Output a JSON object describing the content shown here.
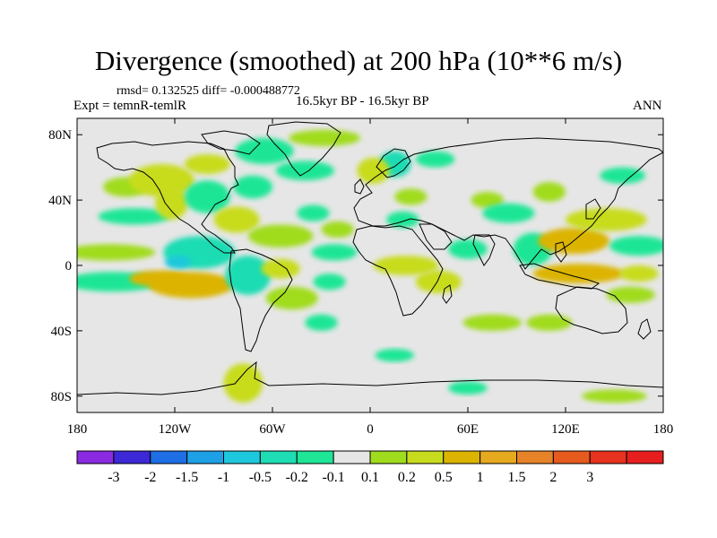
{
  "title": "Divergence (smoothed) at 200 hPa (10**6 m/s)",
  "stats": "rmsd= 0.132525 diff= -0.000488772",
  "experiment": "Expt = temnR-temlR",
  "period": "16.5kyr BP - 16.5kyr BP",
  "season": "ANN",
  "map": {
    "projection": "cylindrical equidistant",
    "lon_range": [
      -180,
      180
    ],
    "lat_range": [
      -90,
      90
    ],
    "lat_ticks": [
      {
        "value": 80,
        "label": "80N"
      },
      {
        "value": 40,
        "label": "40N"
      },
      {
        "value": 0,
        "label": "0"
      },
      {
        "value": -40,
        "label": "40S"
      },
      {
        "value": -80,
        "label": "80S"
      }
    ],
    "lon_ticks": [
      {
        "value": -180,
        "label": "180"
      },
      {
        "value": -120,
        "label": "120W"
      },
      {
        "value": -60,
        "label": "60W"
      },
      {
        "value": 0,
        "label": "0"
      },
      {
        "value": 60,
        "label": "60E"
      },
      {
        "value": 120,
        "label": "120E"
      },
      {
        "value": 180,
        "label": "180"
      }
    ],
    "background_color": "#e6e6e6",
    "coastline_color": "#000000"
  },
  "colorbar": {
    "colors": [
      "#8a2be2",
      "#3c28d6",
      "#1e6ee6",
      "#1ea0e6",
      "#1ec8dc",
      "#1edcb4",
      "#1ee696",
      "#e6e6e6",
      "#a0dc1e",
      "#c8dc1e",
      "#dcb400",
      "#e6aa1e",
      "#e68228",
      "#e65a1e",
      "#e6321e",
      "#e61e1e"
    ],
    "labels": [
      "-3",
      "-2",
      "-1.5",
      "-1",
      "-0.5",
      "-0.2",
      "-0.1",
      "0.1",
      "0.2",
      "0.5",
      "1",
      "1.5",
      "2",
      "3"
    ]
  },
  "chart_data": {
    "type": "heatmap",
    "title": "Divergence (smoothed) at 200 hPa (10**6 m/s)",
    "levels": [
      -3,
      -2,
      -1.5,
      -1,
      -0.5,
      -0.2,
      -0.1,
      0.1,
      0.2,
      0.5,
      1,
      1.5,
      2,
      3
    ],
    "anomalies": [
      {
        "lon": -160,
        "lat": 8,
        "rlon": 28,
        "rlat": 5,
        "value": 0.15
      },
      {
        "lon": -158,
        "lat": -10,
        "rlon": 30,
        "rlat": 6,
        "value": -0.15
      },
      {
        "lon": -150,
        "lat": 48,
        "rlon": 14,
        "rlat": 6,
        "value": 0.15
      },
      {
        "lon": -145,
        "lat": 30,
        "rlon": 22,
        "rlat": 5,
        "value": -0.15
      },
      {
        "lon": -128,
        "lat": 52,
        "rlon": 20,
        "rlat": 10,
        "value": 0.3
      },
      {
        "lon": -122,
        "lat": 38,
        "rlon": 10,
        "rlat": 10,
        "value": 0.3
      },
      {
        "lon": -100,
        "lat": 42,
        "rlon": 14,
        "rlat": 10,
        "value": -0.15
      },
      {
        "lon": -105,
        "lat": 8,
        "rlon": 22,
        "rlat": 10,
        "value": -0.3
      },
      {
        "lon": -110,
        "lat": -12,
        "rlon": 26,
        "rlat": 8,
        "value": 0.6
      },
      {
        "lon": -130,
        "lat": -8,
        "rlon": 18,
        "rlat": 5,
        "value": 0.6
      },
      {
        "lon": -118,
        "lat": 2,
        "rlon": 8,
        "rlat": 4,
        "value": -0.6
      },
      {
        "lon": -82,
        "lat": 28,
        "rlon": 14,
        "rlat": 8,
        "value": 0.3
      },
      {
        "lon": -72,
        "lat": 48,
        "rlon": 12,
        "rlat": 7,
        "value": -0.15
      },
      {
        "lon": -65,
        "lat": 70,
        "rlon": 18,
        "rlat": 8,
        "value": -0.15
      },
      {
        "lon": -100,
        "lat": 62,
        "rlon": 14,
        "rlat": 6,
        "value": 0.3
      },
      {
        "lon": -55,
        "lat": 18,
        "rlon": 20,
        "rlat": 7,
        "value": 0.15
      },
      {
        "lon": -75,
        "lat": -6,
        "rlon": 14,
        "rlat": 12,
        "value": -0.3
      },
      {
        "lon": -55,
        "lat": -2,
        "rlon": 12,
        "rlat": 6,
        "value": 0.3
      },
      {
        "lon": -48,
        "lat": -20,
        "rlon": 16,
        "rlat": 7,
        "value": 0.15
      },
      {
        "lon": -40,
        "lat": 58,
        "rlon": 18,
        "rlat": 6,
        "value": -0.15
      },
      {
        "lon": -28,
        "lat": 78,
        "rlon": 22,
        "rlat": 5,
        "value": 0.15
      },
      {
        "lon": -35,
        "lat": 32,
        "rlon": 10,
        "rlat": 5,
        "value": -0.15
      },
      {
        "lon": -22,
        "lat": 8,
        "rlon": 14,
        "rlat": 5,
        "value": -0.15
      },
      {
        "lon": -25,
        "lat": -10,
        "rlon": 10,
        "rlat": 5,
        "value": -0.15
      },
      {
        "lon": -30,
        "lat": -35,
        "rlon": 10,
        "rlat": 5,
        "value": -0.15
      },
      {
        "lon": -20,
        "lat": 22,
        "rlon": 10,
        "rlat": 5,
        "value": 0.15
      },
      {
        "lon": 15,
        "lat": 62,
        "rlon": 10,
        "rlat": 8,
        "value": -0.3
      },
      {
        "lon": 2,
        "lat": 58,
        "rlon": 10,
        "rlat": 8,
        "value": 0.3
      },
      {
        "lon": 40,
        "lat": 65,
        "rlon": 12,
        "rlat": 5,
        "value": -0.15
      },
      {
        "lon": 25,
        "lat": 42,
        "rlon": 10,
        "rlat": 5,
        "value": 0.15
      },
      {
        "lon": 20,
        "lat": 28,
        "rlon": 10,
        "rlat": 5,
        "value": -0.15
      },
      {
        "lon": 22,
        "lat": 0,
        "rlon": 20,
        "rlat": 6,
        "value": 0.3
      },
      {
        "lon": 42,
        "lat": -10,
        "rlon": 14,
        "rlat": 7,
        "value": 0.3
      },
      {
        "lon": 60,
        "lat": 10,
        "rlon": 12,
        "rlat": 6,
        "value": -0.15
      },
      {
        "lon": 72,
        "lat": 40,
        "rlon": 10,
        "rlat": 5,
        "value": 0.15
      },
      {
        "lon": 85,
        "lat": 32,
        "rlon": 16,
        "rlat": 6,
        "value": -0.15
      },
      {
        "lon": 75,
        "lat": -35,
        "rlon": 18,
        "rlat": 5,
        "value": 0.15
      },
      {
        "lon": 110,
        "lat": -35,
        "rlon": 14,
        "rlat": 5,
        "value": 0.15
      },
      {
        "lon": 100,
        "lat": 10,
        "rlon": 12,
        "rlat": 10,
        "value": -0.15
      },
      {
        "lon": 110,
        "lat": 45,
        "rlon": 10,
        "rlat": 6,
        "value": 0.15
      },
      {
        "lon": 125,
        "lat": 15,
        "rlon": 22,
        "rlat": 8,
        "value": 0.9
      },
      {
        "lon": 128,
        "lat": -5,
        "rlon": 28,
        "rlat": 6,
        "value": 0.6
      },
      {
        "lon": 145,
        "lat": 28,
        "rlon": 25,
        "rlat": 7,
        "value": 0.3
      },
      {
        "lon": 165,
        "lat": 12,
        "rlon": 18,
        "rlat": 6,
        "value": -0.15
      },
      {
        "lon": 160,
        "lat": -18,
        "rlon": 15,
        "rlat": 5,
        "value": 0.15
      },
      {
        "lon": 155,
        "lat": 55,
        "rlon": 14,
        "rlat": 5,
        "value": -0.15
      },
      {
        "lon": 165,
        "lat": -5,
        "rlon": 12,
        "rlat": 5,
        "value": 0.3
      },
      {
        "lon": -78,
        "lat": -72,
        "rlon": 12,
        "rlat": 12,
        "value": 0.3
      },
      {
        "lon": 15,
        "lat": -55,
        "rlon": 12,
        "rlat": 4,
        "value": -0.15
      },
      {
        "lon": 60,
        "lat": -75,
        "rlon": 12,
        "rlat": 4,
        "value": -0.15
      },
      {
        "lon": 150,
        "lat": -80,
        "rlon": 20,
        "rlat": 4,
        "value": 0.15
      }
    ]
  }
}
